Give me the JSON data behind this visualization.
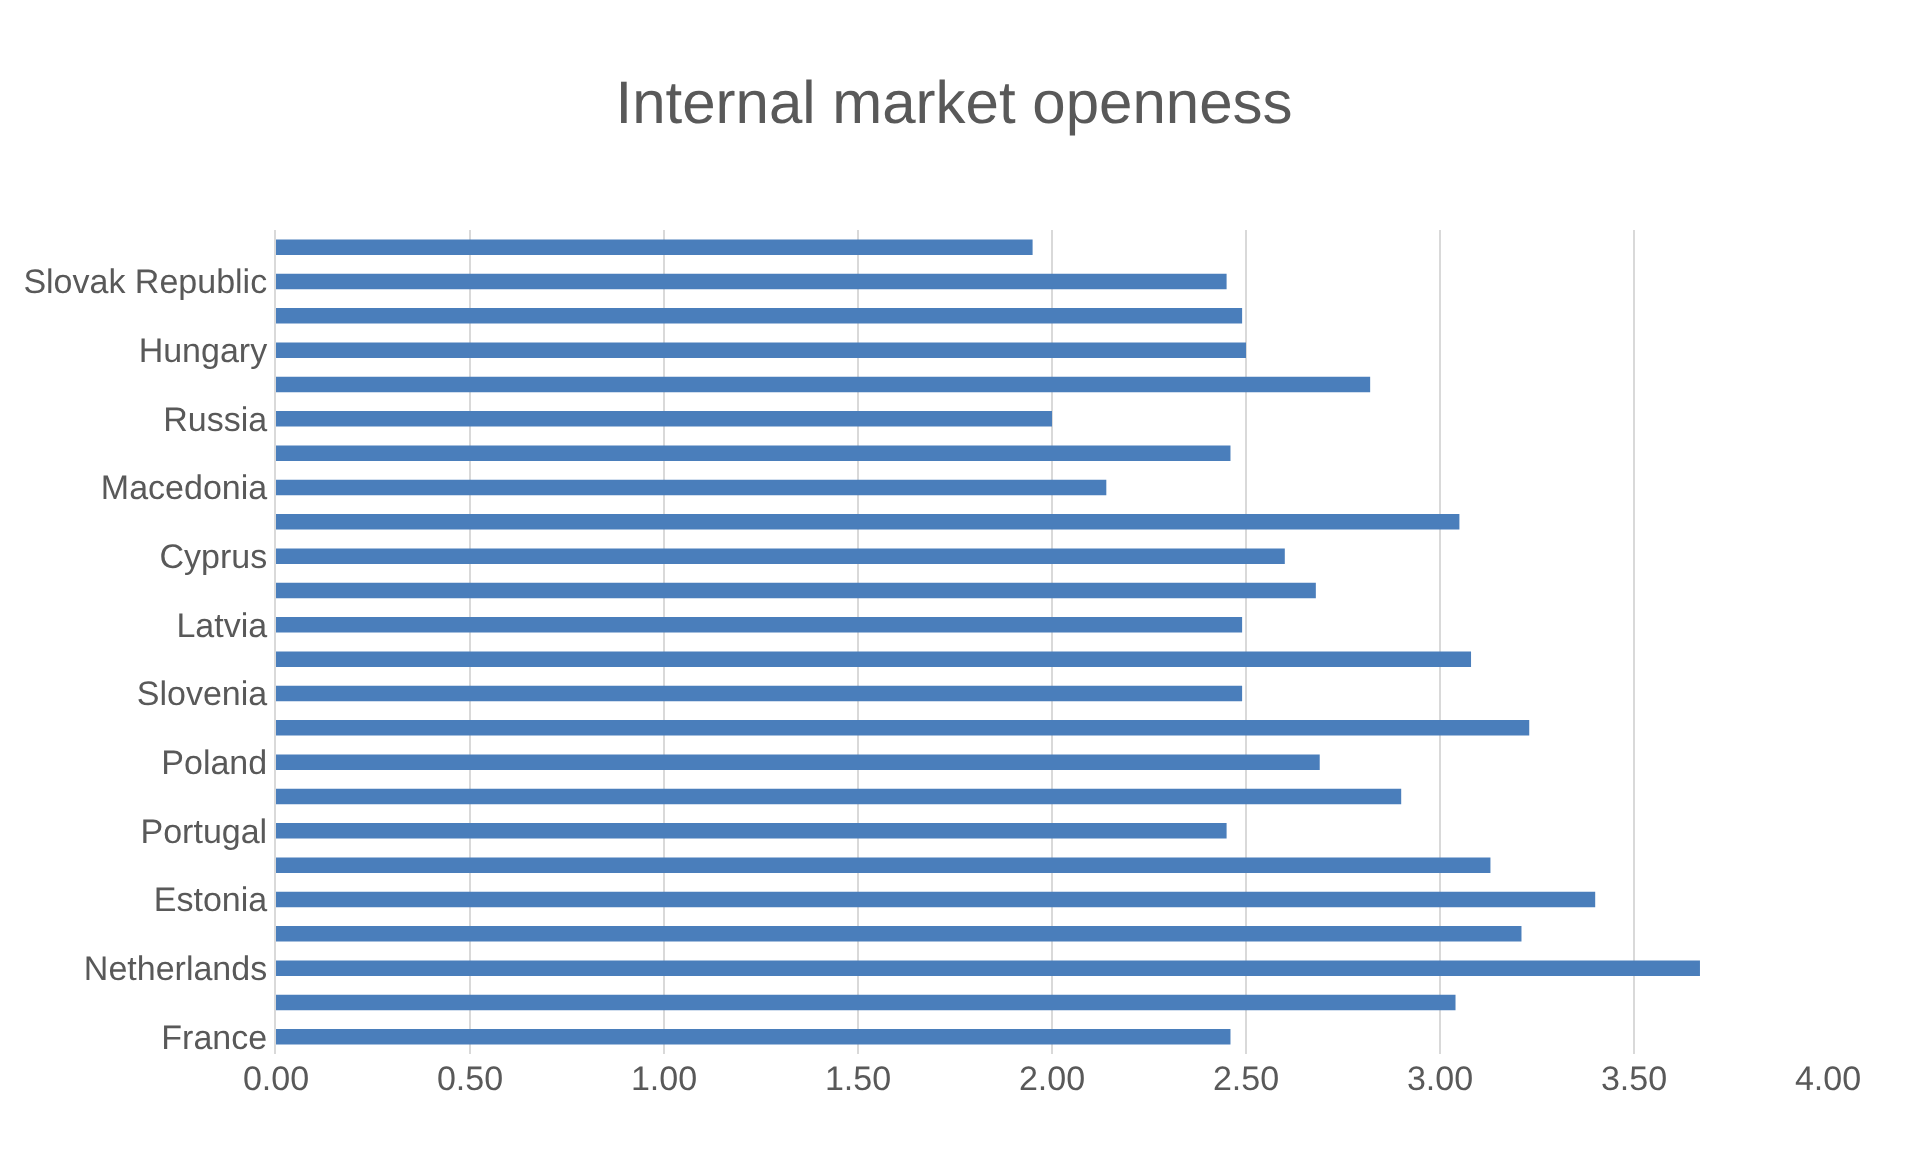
{
  "chart_data": {
    "type": "bar",
    "orientation": "horizontal",
    "title": "Internal market openness",
    "categories": [
      null,
      "Slovak Republic",
      null,
      "Hungary",
      null,
      "Russia",
      null,
      "Macedonia",
      null,
      "Cyprus",
      null,
      "Latvia",
      null,
      "Slovenia",
      null,
      "Poland",
      null,
      "Portugal",
      null,
      "Estonia",
      null,
      "Netherlands",
      null,
      "France"
    ],
    "values": [
      1.95,
      2.45,
      2.49,
      2.5,
      2.82,
      2.0,
      2.46,
      2.14,
      3.05,
      2.6,
      2.68,
      2.49,
      3.08,
      2.49,
      3.23,
      2.69,
      2.9,
      2.45,
      3.13,
      3.4,
      3.21,
      3.67,
      3.04,
      2.46
    ],
    "color": "#4a7ebb",
    "xlim": [
      0,
      4
    ],
    "xticks": [
      {
        "value": 0,
        "label": "0.00"
      },
      {
        "value": 0.5,
        "label": "0.50"
      },
      {
        "value": 1,
        "label": "1.00"
      },
      {
        "value": 1.5,
        "label": "1.50"
      },
      {
        "value": 2,
        "label": "2.00"
      },
      {
        "value": 2.5,
        "label": "2.50"
      },
      {
        "value": 3,
        "label": "3.00"
      },
      {
        "value": 3.5,
        "label": "3.50"
      },
      {
        "value": 4,
        "label": "4.00"
      }
    ],
    "grid": "x",
    "legend": false
  }
}
